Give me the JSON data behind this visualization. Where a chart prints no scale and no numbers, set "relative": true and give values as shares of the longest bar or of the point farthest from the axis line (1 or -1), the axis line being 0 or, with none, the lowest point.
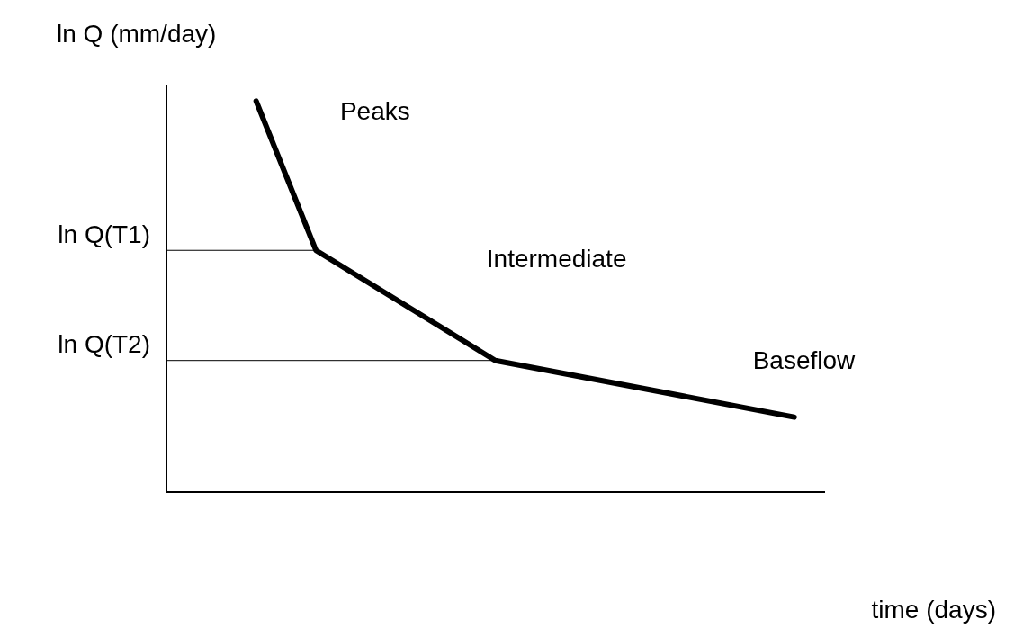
{
  "chart_data": {
    "type": "line",
    "xlabel": "time (days)",
    "ylabel": "ln Q (mm/day)",
    "relative": true,
    "grid": false,
    "legend": false,
    "marker": "none",
    "line_style": "solid",
    "categories": [
      null,
      null,
      null,
      null,
      null,
      null,
      null,
      null,
      null,
      null,
      null,
      null,
      null,
      null,
      null,
      null,
      null,
      null,
      null,
      null,
      null,
      null,
      null
    ],
    "series": [
      {
        "color": "#000000",
        "values": [
          null,
          null,
          null,
          1,
          null,
          0.618,
          null,
          null,
          null,
          null,
          null,
          0.336,
          null,
          null,
          null,
          null,
          null,
          null,
          null,
          null,
          null,
          0.191,
          null
        ]
      }
    ],
    "ref_lines": [
      {
        "axis": "y",
        "value": 0.618,
        "label": "ln Q(T1)",
        "color": "#000000"
      },
      {
        "axis": "y",
        "value": 0.336,
        "label": "ln Q(T2)",
        "color": "#000000"
      }
    ],
    "annotations": [
      "Peaks",
      "Intermediate",
      "Baseflow"
    ]
  }
}
